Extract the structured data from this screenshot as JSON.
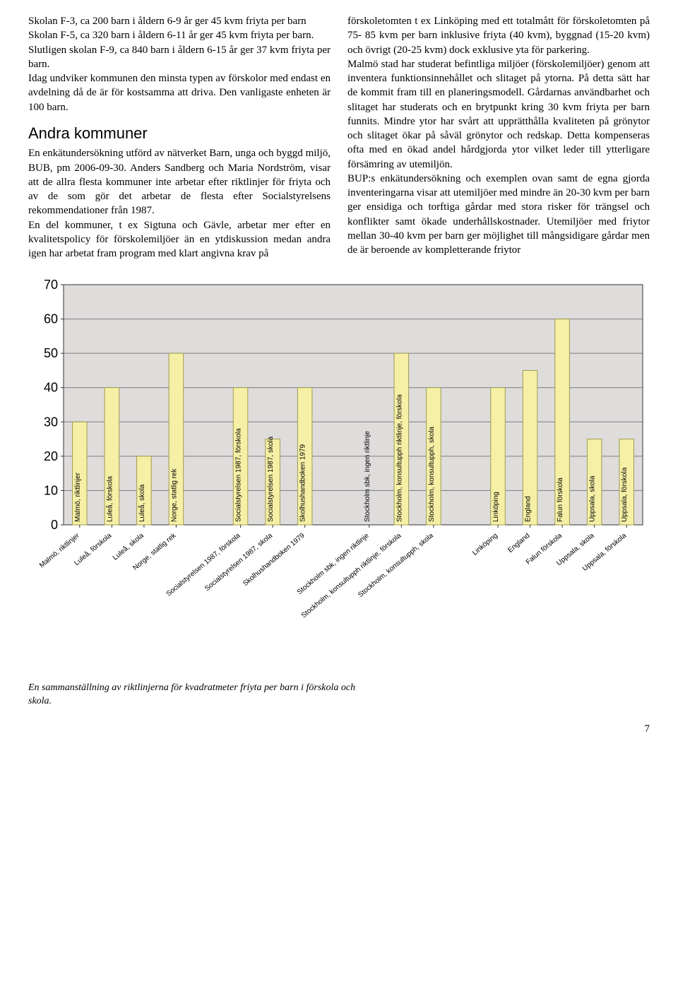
{
  "left_col": {
    "p1": "Skolan F-3, ca 200 barn i åldern 6-9 år ger 45 kvm friyta per barn",
    "p2": "Skolan F-5, ca 320 barn i åldern 6-11 år ger 45 kvm friyta per barn.",
    "p3": "Slutligen skolan F-9, ca 840 barn i åldern 6-15 år ger 37 kvm friyta per barn.",
    "p4": "Idag undviker kommunen den minsta typen av förskolor med endast en avdelning då de är för kostsamma att driva. Den vanligaste enheten är 100 barn.",
    "sub": "Andra kommuner",
    "p5": "En enkätundersökning utförd av nätverket Barn, unga och byggd miljö, BUB, pm 2006-09-30. Anders Sandberg och Maria Nordström, visar att de allra flesta kommuner inte arbetar efter riktlinjer för friyta och av de som gör det arbetar de flesta efter Socialstyrelsens rekommendationer från 1987.",
    "p6": "En del kommuner, t ex Sigtuna och  Gävle, arbetar mer efter en kvalitetspolicy för förskolemiljöer än en ytdiskussion medan andra igen har arbetat fram program med klart angivna krav på"
  },
  "right_col": {
    "p1": "förskoletomten t ex Linköping med ett totalmått för förskoletomten på 75- 85 kvm per barn inklusive friyta (40 kvm), byggnad (15-20 kvm) och övrigt (20-25 kvm) dock exklusive yta för parkering.",
    "p2": "Malmö stad har studerat befintliga miljöer (förskolemiljöer) genom att inventera funktionsinnehållet och slitaget på ytorna. På detta sätt har de kommit fram till en planeringsmodell. Gårdarnas användbarhet och slitaget har studerats och en brytpunkt kring 30 kvm friyta per barn funnits. Mindre ytor har svårt att upprätthålla kvaliteten på grönytor och slitaget ökar  på såväl grönytor och redskap. Detta kompenseras ofta med en ökad andel hårdgjorda ytor vilket leder till ytterligare försämring av utemiljön.",
    "p3": "BUP:s enkätundersökning och exemplen ovan samt de egna gjorda inventeringarna visar att utemiljöer med mindre än 20-30 kvm per barn ger ensidiga och torftiga gårdar med stora risker för trängsel och konflikter samt ökade underhållskostnader. Utemiljöer med friytor mellan 30-40 kvm per barn ger möjlighet till mångsidigare gårdar men de är beroende av kompletterande friytor"
  },
  "chart": {
    "type": "bar",
    "categories": [
      "Malmö, riktlinjer",
      "Luleå, förskola",
      "Luleå, skola",
      "Norge, statlig rek",
      "",
      "Socialstyrelsen 1987, förskola",
      "Socialstyrelsen 1987, skola",
      "Skolhushandboken 1979",
      "",
      "Stockholm sbk, ingen riktlinje",
      "Stockholm, konsultupph riktlinje, förskola",
      "Stockholm, konsultupph, skola",
      "",
      "Linköping",
      "England",
      "Falun förskola",
      "Uppsala, skola",
      "Uppsala, förskola"
    ],
    "values": [
      30,
      40,
      20,
      50,
      null,
      40,
      25,
      40,
      null,
      0,
      50,
      40,
      null,
      40,
      45,
      60,
      25,
      25
    ],
    "ytick_labels": [
      "0",
      "10",
      "20",
      "30",
      "40",
      "50",
      "60",
      "70"
    ],
    "ymax": 70,
    "bar_fill": "#F6F0A6",
    "bar_stroke": "#9C9C50",
    "plot_bg": "#DFDCDC",
    "grid_color": "#7C7C7C",
    "axis_color": "#333333",
    "label_color": "#000000",
    "axis_fontsize": 18,
    "barlabel_fontsize": 10,
    "xlabel_fontsize": 10,
    "caption": "En sammanställning av riktlinjerna för kvadratmeter friyta per barn i förskola och skola.",
    "page": "7"
  }
}
